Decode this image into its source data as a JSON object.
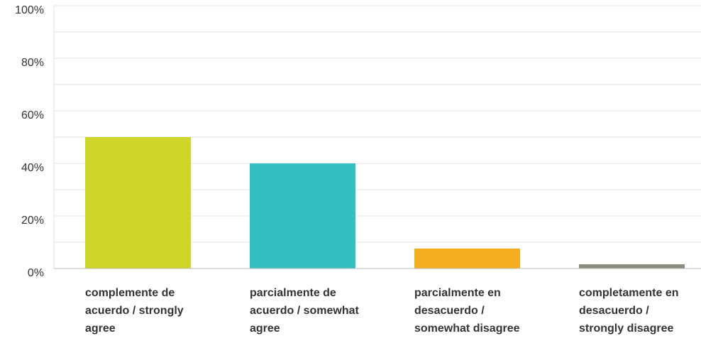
{
  "chart_data": {
    "type": "bar",
    "categories": [
      "complemente de acuerdo / strongly agree",
      "parcialmente de acuerdo / somewhat agree",
      "parcialmente en desacuerdo / somewhat disagree",
      "completamente en desacuerdo / strongly disagree"
    ],
    "values": [
      50,
      40,
      7.6,
      1.6
    ],
    "colors": [
      "#d0d629",
      "#34bfc0",
      "#f6ae21",
      "#8a8b7d"
    ],
    "ylim": [
      0,
      100
    ],
    "yticks": [
      {
        "value": 0,
        "label": "0%"
      },
      {
        "value": 20,
        "label": "20%"
      },
      {
        "value": 40,
        "label": "40%"
      },
      {
        "value": 60,
        "label": "60%"
      },
      {
        "value": 80,
        "label": "80%"
      },
      {
        "value": 100,
        "label": "100%"
      }
    ],
    "minor_yticks": [
      10,
      30,
      50,
      70,
      90
    ],
    "grid": true
  }
}
